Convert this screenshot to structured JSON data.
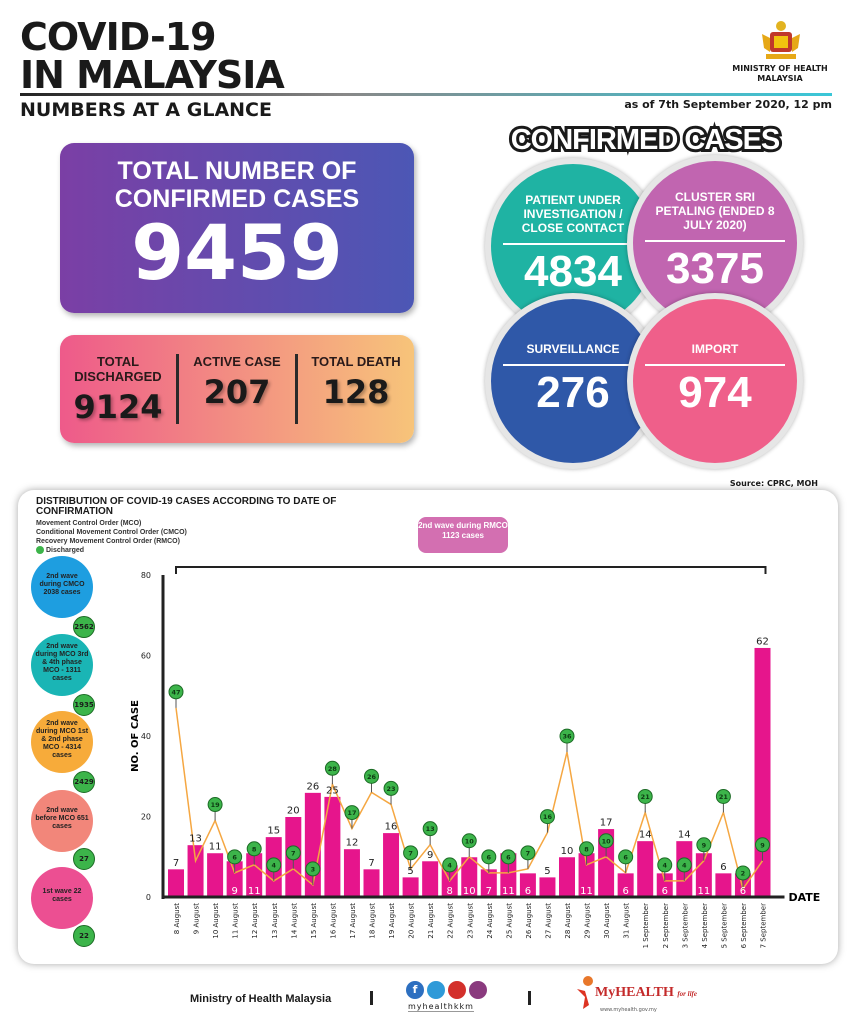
{
  "header": {
    "title_line1": "COVID-19",
    "title_line2": "IN MALAYSIA",
    "subtitle": "NUMBERS AT A GLANCE",
    "ministry": "MINISTRY OF HEALTH MALAYSIA",
    "as_of": "as of 7th September 2020, 12 pm"
  },
  "total": {
    "label": "TOTAL NUMBER OF CONFIRMED CASES",
    "value": "9459"
  },
  "stats": [
    {
      "label": "TOTAL DISCHARGED",
      "value": "9124"
    },
    {
      "label": "ACTIVE CASE",
      "value": "207"
    },
    {
      "label": "TOTAL DEATH",
      "value": "128"
    }
  ],
  "confirmed": {
    "heading": "CONFIRMED CASES",
    "items": [
      {
        "label": "PATIENT UNDER INVESTIGATION / CLOSE CONTACT",
        "value": "4834",
        "color": "#1fb3a3"
      },
      {
        "label": "CLUSTER SRI PETALING (ENDED 8 JULY 2020)",
        "value": "3375",
        "color": "#c165b0"
      },
      {
        "label": "SURVEILLANCE",
        "value": "276",
        "color": "#2f58a8"
      },
      {
        "label": "IMPORT",
        "value": "974",
        "color": "#ef5f8a"
      }
    ],
    "source": "Source: CPRC, MOH"
  },
  "waves": [
    {
      "label": "2nd wave during CMCO 2038 cases",
      "discharged": "2562",
      "color": "#1e9ee0"
    },
    {
      "label": "2nd wave during MCO 3rd & 4th phase MCO - 1311 cases",
      "discharged": "1935",
      "color": "#1ab5b5"
    },
    {
      "label": "2nd wave during MCO 1st & 2nd phase MCO - 4314 cases",
      "discharged": "2429",
      "color": "#f7ab3a"
    },
    {
      "label": "2nd wave before MCO 651 cases",
      "discharged": "27",
      "color": "#f2867a"
    },
    {
      "label": "1st wave 22 cases",
      "discharged": "22",
      "color": "#ec4f92"
    }
  ],
  "footer": {
    "ministry": "Ministry of Health Malaysia",
    "social": "myhealthkkm",
    "brand": "MyHEALTH",
    "tagline": "for life",
    "url": "www.myhealth.gov.my"
  },
  "chart_data": {
    "type": "bar",
    "title": "DISTRIBUTION OF COVID-19 CASES ACCORDING TO DATE OF CONFIRMATION",
    "legend": [
      "Movement Control Order (MCO)",
      "Conditional Movement Control Order (CMCO)",
      "Recovery Movement Control Order (RMCO)",
      "Discharged"
    ],
    "annotation": "2nd wave during RMCO 1123 cases",
    "xlabel": "DATE",
    "ylabel": "NO. OF CASE",
    "ylim": [
      0,
      80
    ],
    "yticks": [
      0,
      20,
      40,
      60,
      80
    ],
    "categories": [
      "8 August",
      "9 August",
      "10 August",
      "11 August",
      "12 August",
      "13 August",
      "14 August",
      "15 August",
      "16 August",
      "17 August",
      "18 August",
      "19 August",
      "20 August",
      "21 August",
      "22 August",
      "23 August",
      "24 August",
      "25 August",
      "26 August",
      "27 August",
      "28 August",
      "29 August",
      "30 August",
      "31 August",
      "1 September",
      "2 September",
      "3 September",
      "4 September",
      "5 September",
      "6 September",
      "7 September"
    ],
    "series": [
      {
        "name": "Cases",
        "type": "bar",
        "color": "#e6158c",
        "values": [
          7,
          13,
          11,
          9,
          11,
          15,
          20,
          26,
          25,
          12,
          7,
          16,
          5,
          9,
          8,
          10,
          7,
          11,
          6,
          5,
          10,
          11,
          17,
          6,
          14,
          6,
          14,
          11,
          6,
          6,
          62
        ]
      },
      {
        "name": "Discharged",
        "type": "line",
        "color": "#f5a742",
        "marker_color": "#3cb44a",
        "values": [
          47,
          9,
          19,
          6,
          8,
          4,
          7,
          3,
          28,
          17,
          26,
          23,
          7,
          13,
          4,
          10,
          6,
          6,
          7,
          16,
          36,
          8,
          10,
          6,
          21,
          4,
          4,
          9,
          21,
          2,
          9
        ]
      }
    ]
  }
}
